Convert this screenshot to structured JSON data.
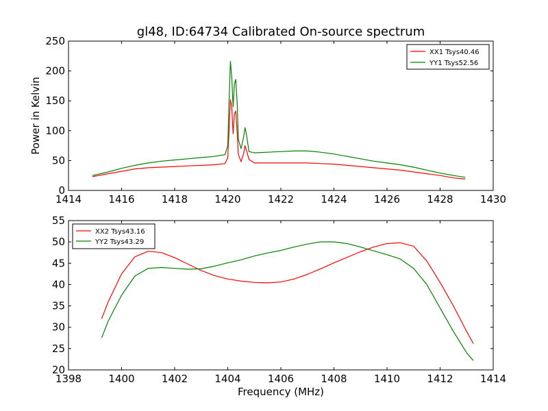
{
  "figure": {
    "title": "gl48, ID:64734 Calibrated On-source spectrum"
  },
  "chart_data": [
    {
      "type": "line",
      "title": "gl48, ID:64734 Calibrated On-source spectrum",
      "xlabel": "",
      "ylabel": "Power in Kelvin",
      "xlim": [
        1414,
        1430
      ],
      "ylim": [
        0,
        250
      ],
      "xticks": [
        "1414",
        "1416",
        "1418",
        "1420",
        "1422",
        "1424",
        "1426",
        "1428",
        "1430"
      ],
      "yticks": [
        "0",
        "50",
        "100",
        "150",
        "200",
        "250"
      ],
      "xtick_values": [
        1414,
        1416,
        1418,
        1420,
        1422,
        1424,
        1426,
        1428,
        1430
      ],
      "ytick_values": [
        0,
        50,
        100,
        150,
        200,
        250
      ],
      "legend_position": "top-right",
      "series": [
        {
          "name": "XX1 Tsys40.46",
          "color": "#ff0000",
          "x": [
            1414.9,
            1415.5,
            1416.0,
            1416.5,
            1417.0,
            1417.5,
            1418.0,
            1418.5,
            1419.0,
            1419.5,
            1419.9,
            1420.0,
            1420.05,
            1420.1,
            1420.15,
            1420.2,
            1420.25,
            1420.3,
            1420.35,
            1420.4,
            1420.5,
            1420.6,
            1420.65,
            1420.7,
            1420.8,
            1421.0,
            1421.5,
            1422.0,
            1422.5,
            1423.0,
            1423.5,
            1424.0,
            1424.5,
            1425.0,
            1425.5,
            1426.0,
            1426.5,
            1427.0,
            1427.5,
            1428.0,
            1428.5,
            1428.95
          ],
          "values": [
            23,
            28,
            32,
            36,
            38,
            39,
            40,
            41,
            42,
            43,
            45,
            55,
            100,
            152,
            140,
            95,
            128,
            133,
            100,
            60,
            48,
            62,
            75,
            68,
            52,
            46,
            46,
            46,
            46,
            46,
            45,
            44,
            42,
            40,
            38,
            36,
            34,
            31,
            28,
            25,
            21,
            19
          ]
        },
        {
          "name": "YY1 Tsys52.56",
          "color": "#008000",
          "x": [
            1414.9,
            1415.5,
            1416.0,
            1416.5,
            1417.0,
            1417.5,
            1418.0,
            1418.5,
            1419.0,
            1419.5,
            1419.9,
            1420.0,
            1420.05,
            1420.1,
            1420.15,
            1420.2,
            1420.25,
            1420.3,
            1420.35,
            1420.4,
            1420.5,
            1420.6,
            1420.65,
            1420.7,
            1420.8,
            1421.0,
            1421.5,
            1422.0,
            1422.5,
            1423.0,
            1423.5,
            1424.0,
            1424.5,
            1425.0,
            1425.5,
            1426.0,
            1426.5,
            1427.0,
            1427.5,
            1428.0,
            1428.5,
            1428.95
          ],
          "values": [
            25,
            31,
            37,
            42,
            46,
            49,
            51,
            53,
            55,
            57,
            60,
            75,
            150,
            216,
            190,
            140,
            178,
            186,
            150,
            85,
            70,
            90,
            105,
            95,
            65,
            63,
            64,
            65,
            66,
            66,
            64,
            61,
            57,
            53,
            49,
            46,
            43,
            39,
            34,
            29,
            25,
            22
          ]
        }
      ]
    },
    {
      "type": "line",
      "title": "",
      "xlabel": "Frequency (MHz)",
      "ylabel": "",
      "xlim": [
        1398,
        1414
      ],
      "ylim": [
        20,
        55
      ],
      "xticks": [
        "1398",
        "1400",
        "1402",
        "1404",
        "1406",
        "1408",
        "1410",
        "1412",
        "1414"
      ],
      "yticks": [
        "20",
        "25",
        "30",
        "35",
        "40",
        "45",
        "50",
        "55"
      ],
      "xtick_values": [
        1398,
        1400,
        1402,
        1404,
        1406,
        1408,
        1410,
        1412,
        1414
      ],
      "ytick_values": [
        20,
        25,
        30,
        35,
        40,
        45,
        50,
        55
      ],
      "legend_position": "top-left",
      "series": [
        {
          "name": "XX2 Tsys43.16",
          "color": "#ff0000",
          "x": [
            1399.25,
            1399.5,
            1400.0,
            1400.5,
            1401.0,
            1401.5,
            1402.0,
            1402.5,
            1403.0,
            1403.5,
            1404.0,
            1404.5,
            1405.0,
            1405.5,
            1406.0,
            1406.5,
            1407.0,
            1407.5,
            1408.0,
            1408.5,
            1409.0,
            1409.5,
            1410.0,
            1410.5,
            1411.0,
            1411.5,
            1412.0,
            1412.5,
            1413.0,
            1413.25
          ],
          "values": [
            32,
            36,
            42.5,
            46.5,
            47.8,
            47.5,
            46.3,
            44.8,
            43.3,
            42.1,
            41.3,
            40.8,
            40.5,
            40.4,
            40.6,
            41.3,
            42.4,
            43.7,
            45.1,
            46.4,
            47.7,
            48.8,
            49.6,
            49.8,
            49.0,
            45.5,
            40.5,
            35.0,
            29.0,
            26.2
          ]
        },
        {
          "name": "YY2 Tsys43.29",
          "color": "#008000",
          "x": [
            1399.25,
            1399.5,
            1400.0,
            1400.5,
            1401.0,
            1401.5,
            1402.0,
            1402.5,
            1403.0,
            1403.5,
            1404.0,
            1404.5,
            1405.0,
            1405.5,
            1406.0,
            1406.5,
            1407.0,
            1407.5,
            1408.0,
            1408.5,
            1409.0,
            1409.5,
            1410.0,
            1410.5,
            1411.0,
            1411.5,
            1412.0,
            1412.5,
            1413.0,
            1413.25
          ],
          "values": [
            27.5,
            31.5,
            37.5,
            42.0,
            43.8,
            44.0,
            43.8,
            43.6,
            43.7,
            44.3,
            45.1,
            45.8,
            46.7,
            47.4,
            48.0,
            48.8,
            49.5,
            50.0,
            50.0,
            49.6,
            48.8,
            47.9,
            47.0,
            46.0,
            43.8,
            40.0,
            34.5,
            29.0,
            24.0,
            22.2
          ]
        }
      ]
    }
  ]
}
